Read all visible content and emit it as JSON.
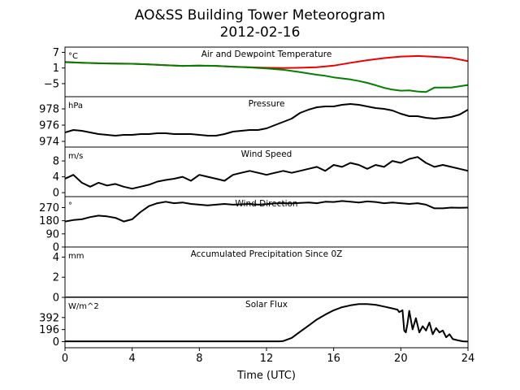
{
  "title_line1": "AO&SS Building Tower Meteorogram",
  "title_line2": "2012-02-16",
  "chart_data": {
    "type": "line",
    "xlabel": "Time (UTC)",
    "x_ticks": [
      "0",
      "4",
      "8",
      "12",
      "16",
      "20",
      "24"
    ],
    "xlim": [
      0,
      24
    ],
    "panels": [
      {
        "id": "temp",
        "title": "Air and Dewpoint Temperature",
        "unit": "°C",
        "ylim": [
          -10,
          9
        ],
        "y_ticks": [
          7,
          1,
          -5
        ],
        "y_tick_labels": [
          "7",
          "1",
          "−5"
        ],
        "series": [
          {
            "key": "air",
            "color": "#ee0000",
            "x": [
              0,
              1,
              2,
              3,
              4,
              5,
              6,
              7,
              8,
              9,
              10,
              11,
              12,
              13,
              14,
              15,
              16,
              17,
              18,
              19,
              20,
              21,
              22,
              23,
              24
            ],
            "y": [
              3.3,
              3.0,
              2.8,
              2.7,
              2.6,
              2.4,
              2.1,
              1.8,
              1.9,
              1.8,
              1.5,
              1.3,
              1.1,
              1.0,
              1.1,
              1.3,
              1.9,
              3.0,
              4.0,
              4.8,
              5.4,
              5.6,
              5.3,
              4.9,
              3.6
            ]
          },
          {
            "key": "dewpoint",
            "color": "#008000",
            "x": [
              0,
              1,
              2,
              3,
              4,
              5,
              6,
              7,
              8,
              9,
              10,
              11,
              12,
              13,
              14,
              15,
              15.5,
              16,
              16.5,
              17,
              17.5,
              18,
              18.5,
              19,
              19.5,
              20,
              20.5,
              21,
              21.5,
              22,
              23,
              24
            ],
            "y": [
              3.2,
              3.0,
              2.8,
              2.7,
              2.6,
              2.4,
              2.1,
              1.8,
              1.9,
              1.8,
              1.5,
              1.2,
              0.8,
              0.3,
              -0.6,
              -1.6,
              -2.0,
              -2.6,
              -3.0,
              -3.4,
              -4.0,
              -4.7,
              -5.6,
              -6.6,
              -7.3,
              -7.7,
              -7.6,
              -8.0,
              -8.2,
              -6.5,
              -6.5,
              -5.5
            ]
          }
        ]
      },
      {
        "id": "pressure",
        "title": "Pressure",
        "unit": "hPa",
        "ylim": [
          973.3,
          979.5
        ],
        "y_ticks": [
          978,
          976,
          974
        ],
        "y_tick_labels": [
          "978",
          "976",
          "974"
        ],
        "series": [
          {
            "key": "pressure",
            "color": "#000000",
            "x": [
              0,
              0.5,
              1,
              1.5,
              2,
              2.5,
              3,
              3.5,
              4,
              4.5,
              5,
              5.5,
              6,
              6.5,
              7,
              7.5,
              8,
              8.5,
              9,
              9.5,
              10,
              10.5,
              11,
              11.5,
              12,
              12.5,
              13,
              13.5,
              14,
              14.5,
              15,
              15.5,
              16,
              16.5,
              17,
              17.5,
              18,
              18.5,
              19,
              19.5,
              20,
              20.5,
              21,
              21.5,
              22,
              22.5,
              23,
              23.5,
              24
            ],
            "y": [
              975.1,
              975.4,
              975.3,
              975.1,
              974.9,
              974.8,
              974.7,
              974.8,
              974.8,
              974.9,
              974.9,
              975.0,
              975.0,
              974.9,
              974.9,
              974.9,
              974.8,
              974.7,
              974.7,
              974.9,
              975.2,
              975.3,
              975.4,
              975.4,
              975.6,
              976.0,
              976.4,
              976.8,
              977.5,
              977.9,
              978.2,
              978.3,
              978.3,
              978.5,
              978.6,
              978.5,
              978.3,
              978.1,
              978.0,
              977.8,
              977.4,
              977.1,
              977.1,
              976.9,
              976.8,
              976.9,
              977.0,
              977.3,
              977.9
            ]
          }
        ]
      },
      {
        "id": "wind_speed",
        "title": "Wind Speed",
        "unit": "m/s",
        "ylim": [
          -1,
          11.5
        ],
        "y_ticks": [
          8,
          4,
          0
        ],
        "y_tick_labels": [
          "8",
          "4",
          "0"
        ],
        "series": [
          {
            "key": "wind_speed",
            "color": "#000000",
            "x": [
              0,
              0.5,
              1,
              1.5,
              2,
              2.5,
              3,
              3.5,
              4,
              4.5,
              5,
              5.5,
              6,
              6.5,
              7,
              7.5,
              8,
              8.5,
              9,
              9.5,
              10,
              10.5,
              11,
              11.5,
              12,
              12.5,
              13,
              13.5,
              14,
              14.5,
              15,
              15.5,
              16,
              16.5,
              17,
              17.5,
              18,
              18.5,
              19,
              19.5,
              20,
              20.5,
              21,
              21.5,
              22,
              22.5,
              23,
              23.5,
              24
            ],
            "y": [
              3.5,
              4.5,
              2.5,
              1.5,
              2.5,
              1.8,
              2.2,
              1.5,
              1.0,
              1.5,
              2.0,
              2.8,
              3.2,
              3.5,
              4.0,
              3.0,
              4.5,
              4.0,
              3.5,
              3.0,
              4.5,
              5.0,
              5.5,
              5.0,
              4.5,
              5.0,
              5.5,
              5.0,
              5.5,
              6.0,
              6.5,
              5.5,
              7.0,
              6.5,
              7.5,
              7.0,
              6.0,
              7.0,
              6.5,
              8.0,
              7.5,
              8.5,
              9.0,
              7.5,
              6.5,
              7.0,
              6.5,
              6.0,
              5.5
            ]
          }
        ]
      },
      {
        "id": "wind_direction",
        "title": "Wind Direction",
        "unit": "°",
        "ylim": [
          0,
          345
        ],
        "y_ticks": [
          270,
          180,
          90,
          0
        ],
        "y_tick_labels": [
          "270",
          "180",
          "90",
          "0"
        ],
        "series": [
          {
            "key": "wind_direction",
            "color": "#000000",
            "x": [
              0,
              0.5,
              1,
              1.5,
              2,
              2.5,
              3,
              3.5,
              4,
              4.5,
              5,
              5.5,
              6,
              6.5,
              7,
              7.5,
              8,
              8.5,
              9,
              9.5,
              10,
              10.5,
              11,
              11.5,
              12,
              12.5,
              13,
              13.5,
              14,
              14.5,
              15,
              15.5,
              16,
              16.5,
              17,
              17.5,
              18,
              18.5,
              19,
              19.5,
              20,
              20.5,
              21,
              21.5,
              22,
              22.5,
              23,
              23.5,
              24
            ],
            "y": [
              175,
              185,
              190,
              205,
              215,
              210,
              200,
              175,
              190,
              240,
              280,
              300,
              310,
              300,
              305,
              295,
              290,
              285,
              290,
              295,
              290,
              292,
              295,
              290,
              293,
              298,
              300,
              298,
              302,
              305,
              300,
              310,
              308,
              315,
              310,
              305,
              312,
              308,
              300,
              305,
              300,
              295,
              300,
              290,
              265,
              265,
              270,
              268,
              270
            ]
          }
        ]
      },
      {
        "id": "precipitation",
        "title": "Accumulated Precipitation Since 0Z",
        "unit": "mm",
        "ylim": [
          0,
          5
        ],
        "y_ticks": [
          4,
          2,
          0
        ],
        "y_tick_labels": [
          "4",
          "2",
          "0"
        ],
        "series": [
          {
            "key": "precipitation",
            "color": "#000000",
            "x": [
              0,
              24
            ],
            "y": [
              0,
              0
            ]
          }
        ]
      },
      {
        "id": "solar",
        "title": "Solar Flux",
        "unit": "W/m^2",
        "ylim": [
          -100,
          720
        ],
        "y_ticks": [
          392,
          196,
          0
        ],
        "y_tick_labels": [
          "392",
          "196",
          "0"
        ],
        "series": [
          {
            "key": "solar",
            "color": "#000000",
            "x": [
              0,
              4,
              8,
              12,
              12.8,
              13.0,
              13.5,
              14,
              14.5,
              15,
              15.5,
              16,
              16.5,
              17,
              17.5,
              18,
              18.5,
              19,
              19.5,
              19.8,
              19.9,
              20.1,
              20.2,
              20.3,
              20.4,
              20.5,
              20.7,
              20.9,
              21.1,
              21.3,
              21.5,
              21.7,
              21.9,
              22.1,
              22.3,
              22.5,
              22.7,
              22.9,
              23.1,
              23.4,
              23.7,
              24
            ],
            "y": [
              5,
              5,
              5,
              5,
              5,
              10,
              60,
              160,
              260,
              360,
              440,
              510,
              560,
              590,
              610,
              612,
              600,
              570,
              540,
              520,
              480,
              510,
              180,
              150,
              300,
              500,
              200,
              380,
              150,
              250,
              180,
              310,
              120,
              220,
              150,
              180,
              70,
              120,
              40,
              20,
              5,
              0
            ]
          }
        ]
      }
    ]
  }
}
